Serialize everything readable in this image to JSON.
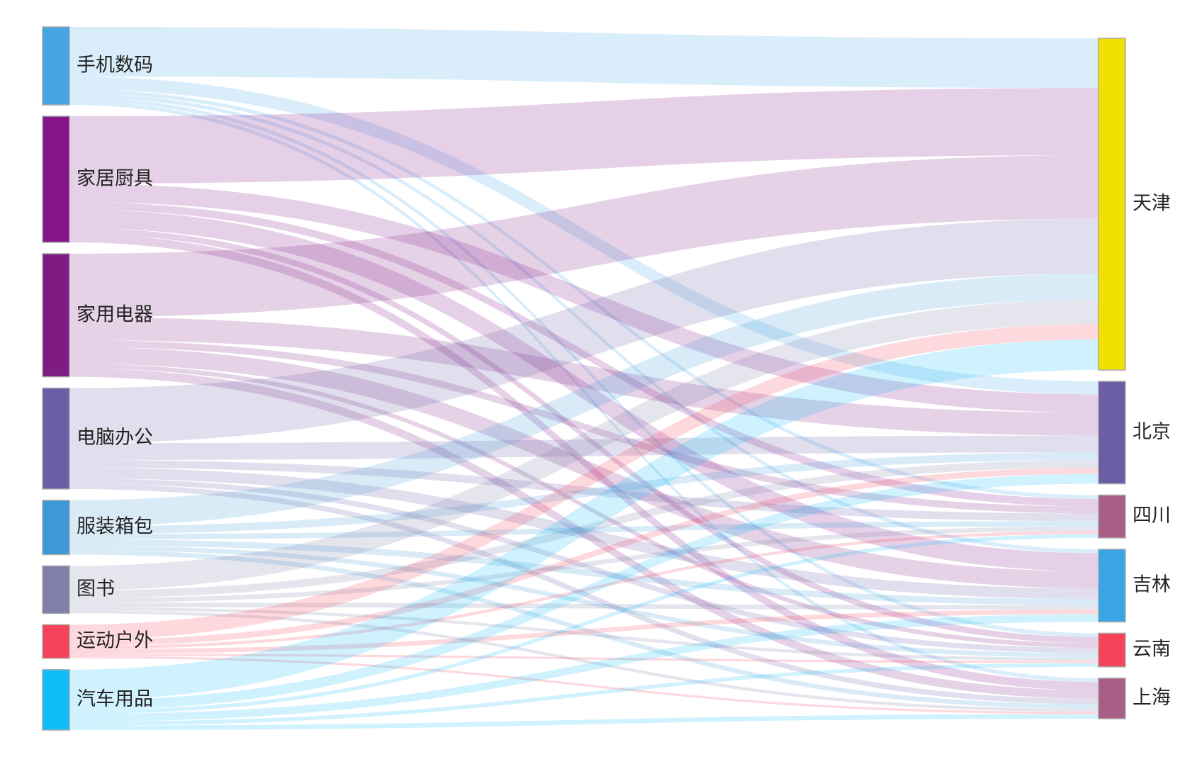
{
  "chart_data": {
    "type": "sankey",
    "nodes": [
      {
        "name": "手机数码",
        "color": "#45a5e5"
      },
      {
        "name": "家居厨具",
        "color": "#84168a"
      },
      {
        "name": "家用电器",
        "color": "#7e1c84"
      },
      {
        "name": "电脑办公",
        "color": "#6a5fa6"
      },
      {
        "name": "服装箱包",
        "color": "#3d9ad6"
      },
      {
        "name": "图书",
        "color": "#7f7fa8"
      },
      {
        "name": "运动户外",
        "color": "#f5435a"
      },
      {
        "name": "汽车用品",
        "color": "#10bdf9"
      },
      {
        "name": "天津",
        "color": "#f2e000"
      },
      {
        "name": "北京",
        "color": "#6c5ea6"
      },
      {
        "name": "四川",
        "color": "#a85f86"
      },
      {
        "name": "吉林",
        "color": "#3aa5e5"
      },
      {
        "name": "云南",
        "color": "#f5435a"
      },
      {
        "name": "上海",
        "color": "#a85f86"
      }
    ],
    "links": [
      {
        "source": 0,
        "target": 8,
        "value": 65
      },
      {
        "source": 0,
        "target": 9,
        "value": 17
      },
      {
        "source": 0,
        "target": 10,
        "value": 5
      },
      {
        "source": 0,
        "target": 11,
        "value": 5
      },
      {
        "source": 0,
        "target": 12,
        "value": 5
      },
      {
        "source": 0,
        "target": 13,
        "value": 5
      },
      {
        "source": 1,
        "target": 8,
        "value": 88
      },
      {
        "source": 1,
        "target": 9,
        "value": 24
      },
      {
        "source": 1,
        "target": 10,
        "value": 10
      },
      {
        "source": 1,
        "target": 11,
        "value": 24
      },
      {
        "source": 1,
        "target": 12,
        "value": 8
      },
      {
        "source": 1,
        "target": 13,
        "value": 11
      },
      {
        "source": 2,
        "target": 8,
        "value": 83
      },
      {
        "source": 2,
        "target": 9,
        "value": 30
      },
      {
        "source": 2,
        "target": 10,
        "value": 9
      },
      {
        "source": 2,
        "target": 11,
        "value": 22
      },
      {
        "source": 2,
        "target": 12,
        "value": 6
      },
      {
        "source": 2,
        "target": 13,
        "value": 11
      },
      {
        "source": 3,
        "target": 8,
        "value": 72
      },
      {
        "source": 3,
        "target": 9,
        "value": 22
      },
      {
        "source": 3,
        "target": 10,
        "value": 10
      },
      {
        "source": 3,
        "target": 11,
        "value": 14
      },
      {
        "source": 3,
        "target": 12,
        "value": 7
      },
      {
        "source": 3,
        "target": 13,
        "value": 7
      },
      {
        "source": 4,
        "target": 8,
        "value": 34
      },
      {
        "source": 4,
        "target": 9,
        "value": 10
      },
      {
        "source": 4,
        "target": 10,
        "value": 7
      },
      {
        "source": 4,
        "target": 11,
        "value": 8
      },
      {
        "source": 4,
        "target": 12,
        "value": 6
      },
      {
        "source": 4,
        "target": 13,
        "value": 6
      },
      {
        "source": 5,
        "target": 8,
        "value": 32
      },
      {
        "source": 5,
        "target": 9,
        "value": 10
      },
      {
        "source": 5,
        "target": 10,
        "value": 6
      },
      {
        "source": 5,
        "target": 11,
        "value": 6
      },
      {
        "source": 5,
        "target": 12,
        "value": 4
      },
      {
        "source": 5,
        "target": 13,
        "value": 4
      },
      {
        "source": 6,
        "target": 8,
        "value": 20
      },
      {
        "source": 6,
        "target": 9,
        "value": 8
      },
      {
        "source": 6,
        "target": 10,
        "value": 4
      },
      {
        "source": 6,
        "target": 11,
        "value": 6
      },
      {
        "source": 6,
        "target": 12,
        "value": 3
      },
      {
        "source": 6,
        "target": 13,
        "value": 3
      },
      {
        "source": 7,
        "target": 8,
        "value": 40
      },
      {
        "source": 7,
        "target": 9,
        "value": 13
      },
      {
        "source": 7,
        "target": 10,
        "value": 5
      },
      {
        "source": 7,
        "target": 11,
        "value": 10
      },
      {
        "source": 7,
        "target": 12,
        "value": 5
      },
      {
        "source": 7,
        "target": 13,
        "value": 6
      }
    ]
  }
}
